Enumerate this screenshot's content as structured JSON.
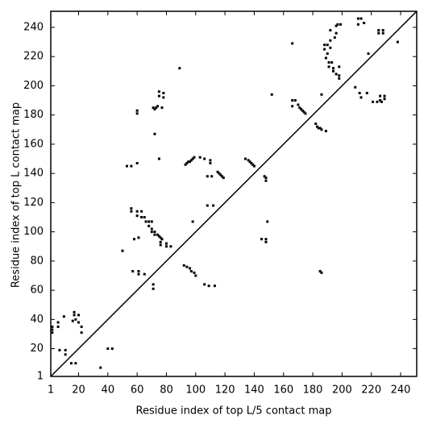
{
  "chart_data": {
    "type": "scatter",
    "x_label": "Residue index of top L/5 contact map",
    "y_label": "Residue index of top L contact map",
    "xlim": [
      1,
      251
    ],
    "ylim": [
      1,
      251
    ],
    "xticks": [
      1,
      20,
      40,
      60,
      80,
      100,
      120,
      140,
      160,
      180,
      200,
      220,
      240
    ],
    "yticks": [
      1,
      20,
      40,
      60,
      80,
      100,
      120,
      140,
      160,
      180,
      200,
      220,
      240
    ],
    "color": "#000000",
    "x": [
      2,
      2,
      2,
      6,
      6,
      10,
      17,
      17,
      16,
      18,
      20,
      20,
      22,
      22,
      7,
      11,
      11,
      15,
      18,
      35,
      40,
      43,
      50,
      53,
      56,
      60,
      56,
      56,
      60,
      63,
      60,
      63,
      65,
      66,
      68,
      70,
      68,
      70,
      70,
      72,
      72,
      74,
      75,
      76,
      77,
      76,
      80,
      80,
      83,
      76,
      58,
      61,
      57,
      61,
      61,
      65,
      71,
      71,
      60,
      60,
      72,
      71,
      72,
      73,
      74,
      75,
      75,
      78,
      78,
      77,
      75,
      89,
      92,
      94,
      96,
      97,
      99,
      100,
      98,
      93,
      94,
      95,
      96,
      97,
      98,
      99,
      103,
      106,
      110,
      110,
      108,
      111,
      108,
      112,
      106,
      109,
      113,
      115,
      116,
      117,
      118,
      119,
      134,
      136,
      137,
      138,
      139,
      140,
      145,
      148,
      148,
      149,
      147,
      148,
      148,
      152,
      166,
      166,
      168,
      170,
      171,
      172,
      173,
      174,
      175,
      166,
      182,
      183,
      184,
      185,
      186,
      189,
      185,
      186,
      186,
      188,
      188,
      190,
      190,
      189,
      192,
      191,
      193,
      191,
      194,
      194,
      196,
      198,
      198,
      198,
      192,
      195,
      196,
      196,
      199,
      192,
      209,
      211,
      213,
      211,
      215,
      212,
      213,
      217,
      218,
      221,
      224,
      226,
      226,
      227,
      229,
      229,
      225,
      228,
      225,
      228,
      238,
      197
    ],
    "values": [
      33,
      31,
      35,
      38,
      35,
      42,
      45,
      43,
      39,
      40,
      43,
      38,
      35,
      31,
      19,
      19,
      16,
      10,
      10,
      7,
      20,
      20,
      87,
      145,
      145,
      147,
      116,
      114,
      114,
      114,
      111,
      110,
      110,
      107,
      107,
      107,
      104,
      102,
      100,
      100,
      98,
      98,
      97,
      96,
      95,
      93,
      92,
      90,
      90,
      91,
      95,
      96,
      73,
      73,
      71,
      71,
      64,
      61,
      183,
      181,
      167,
      185,
      184,
      185,
      186,
      193,
      196,
      192,
      195,
      185,
      150,
      212,
      77,
      76,
      75,
      73,
      72,
      70,
      107,
      146,
      147,
      148,
      148,
      149,
      150,
      151,
      151,
      150,
      149,
      147,
      138,
      138,
      118,
      118,
      64,
      63,
      63,
      141,
      140,
      139,
      138,
      137,
      150,
      149,
      148,
      147,
      146,
      145,
      95,
      95,
      93,
      107,
      138,
      137,
      135,
      194,
      229,
      190,
      190,
      187,
      185,
      184,
      183,
      182,
      181,
      186,
      174,
      172,
      171,
      171,
      170,
      169,
      73,
      72,
      194,
      225,
      228,
      228,
      222,
      219,
      226,
      216,
      216,
      213,
      212,
      210,
      208,
      213,
      207,
      205,
      231,
      233,
      236,
      241,
      242,
      238,
      199,
      246,
      246,
      242,
      243,
      195,
      192,
      195,
      222,
      189,
      189,
      190,
      193,
      189,
      191,
      193,
      238,
      238,
      236,
      236,
      230,
      242
    ]
  }
}
